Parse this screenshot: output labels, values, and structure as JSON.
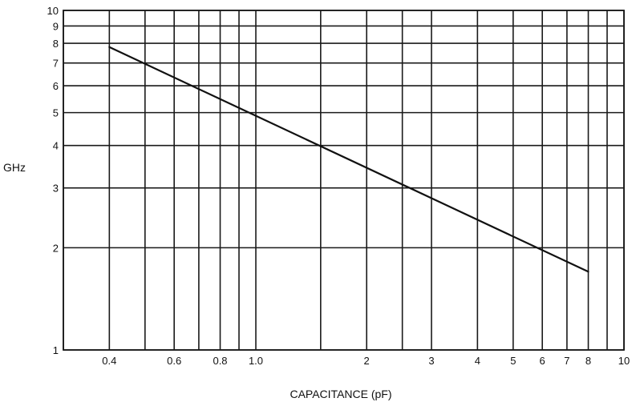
{
  "chart_data": {
    "type": "line",
    "title": "",
    "xlabel": "CAPACITANCE (pF)",
    "ylabel": "GHz",
    "x_scale": "log",
    "y_scale": "log",
    "xlim": [
      0.3,
      10
    ],
    "ylim": [
      1,
      10
    ],
    "grid": true,
    "x_gridlines": [
      0.3,
      0.4,
      0.5,
      0.6,
      0.7,
      0.8,
      0.9,
      1.0,
      1.5,
      2,
      2.5,
      3,
      4,
      5,
      6,
      7,
      8,
      9,
      10
    ],
    "y_gridlines": [
      1,
      2,
      3,
      4,
      5,
      6,
      7,
      8,
      9,
      10
    ],
    "x_ticks": [
      {
        "value": 0.4,
        "label": "0.4"
      },
      {
        "value": 0.6,
        "label": "0.6"
      },
      {
        "value": 0.8,
        "label": "0.8"
      },
      {
        "value": 1.0,
        "label": "1.0"
      },
      {
        "value": 2,
        "label": "2"
      },
      {
        "value": 3,
        "label": "3"
      },
      {
        "value": 4,
        "label": "4"
      },
      {
        "value": 5,
        "label": "5"
      },
      {
        "value": 6,
        "label": "6"
      },
      {
        "value": 7,
        "label": "7"
      },
      {
        "value": 8,
        "label": "8"
      },
      {
        "value": 10,
        "label": "10"
      }
    ],
    "y_ticks": [
      {
        "value": 1,
        "label": "1"
      },
      {
        "value": 2,
        "label": "2"
      },
      {
        "value": 3,
        "label": "3"
      },
      {
        "value": 4,
        "label": "4"
      },
      {
        "value": 5,
        "label": "5"
      },
      {
        "value": 6,
        "label": "6"
      },
      {
        "value": 7,
        "label": "7"
      },
      {
        "value": 8,
        "label": "8"
      },
      {
        "value": 9,
        "label": "9"
      },
      {
        "value": 10,
        "label": "10"
      }
    ],
    "series": [
      {
        "x": [
          0.4,
          8
        ],
        "y": [
          7.8,
          1.7
        ]
      }
    ]
  }
}
